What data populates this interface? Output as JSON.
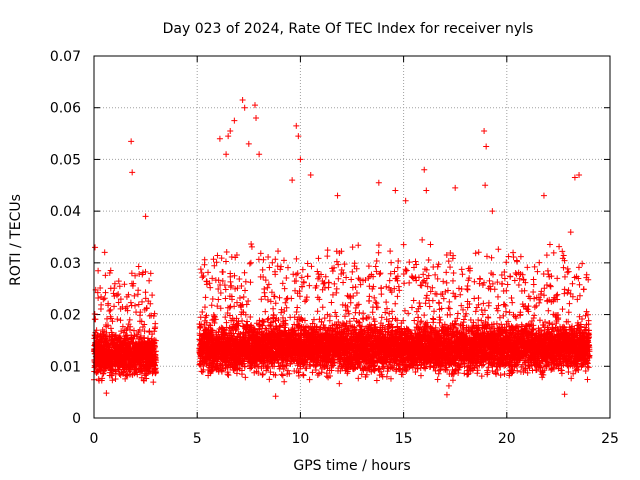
{
  "chart_data": {
    "type": "scatter",
    "title": "Day 023 of 2024, Rate Of TEC Index for receiver nyls",
    "xlabel": "GPS time / hours",
    "ylabel": "ROTI / TECUs",
    "xlim": [
      0,
      25
    ],
    "ylim": [
      0,
      0.07
    ],
    "x_ticks": [
      0,
      5,
      10,
      15,
      20,
      25
    ],
    "x_tick_labels": [
      "0",
      "5",
      "10",
      "15",
      "20",
      "25"
    ],
    "y_ticks": [
      0,
      0.01,
      0.02,
      0.03,
      0.04,
      0.05,
      0.06,
      0.07
    ],
    "y_tick_labels": [
      "0",
      "0.01",
      "0.02",
      "0.03",
      "0.04",
      "0.05",
      "0.06",
      "0.07"
    ],
    "grid": true,
    "marker": "plus",
    "color": "#ff0000",
    "series": [
      {
        "name": "ROTI",
        "segments": [
          {
            "x_range": [
              0.0,
              3.0
            ],
            "median": 0.012,
            "spread": 0.005
          },
          {
            "x_range": [
              5.1,
              24.0
            ],
            "median": 0.0135,
            "spread": 0.0055
          }
        ],
        "notable_points": [
          {
            "x": 0.05,
            "y": 0.033
          },
          {
            "x": 1.8,
            "y": 0.0535
          },
          {
            "x": 1.85,
            "y": 0.0475
          },
          {
            "x": 2.5,
            "y": 0.039
          },
          {
            "x": 6.1,
            "y": 0.054
          },
          {
            "x": 6.4,
            "y": 0.051
          },
          {
            "x": 6.5,
            "y": 0.0545
          },
          {
            "x": 6.6,
            "y": 0.0555
          },
          {
            "x": 6.8,
            "y": 0.0575
          },
          {
            "x": 7.2,
            "y": 0.0615
          },
          {
            "x": 7.3,
            "y": 0.06
          },
          {
            "x": 7.5,
            "y": 0.053
          },
          {
            "x": 7.8,
            "y": 0.0605
          },
          {
            "x": 7.85,
            "y": 0.058
          },
          {
            "x": 8.0,
            "y": 0.051
          },
          {
            "x": 9.6,
            "y": 0.046
          },
          {
            "x": 9.8,
            "y": 0.0565
          },
          {
            "x": 9.9,
            "y": 0.0545
          },
          {
            "x": 10.0,
            "y": 0.05
          },
          {
            "x": 10.5,
            "y": 0.047
          },
          {
            "x": 11.8,
            "y": 0.043
          },
          {
            "x": 13.8,
            "y": 0.0455
          },
          {
            "x": 14.6,
            "y": 0.044
          },
          {
            "x": 15.1,
            "y": 0.042
          },
          {
            "x": 16.0,
            "y": 0.048
          },
          {
            "x": 16.1,
            "y": 0.044
          },
          {
            "x": 17.5,
            "y": 0.0445
          },
          {
            "x": 18.9,
            "y": 0.0555
          },
          {
            "x": 19.0,
            "y": 0.0525
          },
          {
            "x": 18.95,
            "y": 0.045
          },
          {
            "x": 19.3,
            "y": 0.04
          },
          {
            "x": 21.8,
            "y": 0.043
          },
          {
            "x": 23.3,
            "y": 0.0465
          },
          {
            "x": 23.5,
            "y": 0.047
          },
          {
            "x": 0.6,
            "y": 0.0048
          },
          {
            "x": 8.8,
            "y": 0.0042
          },
          {
            "x": 17.1,
            "y": 0.0045
          },
          {
            "x": 22.8,
            "y": 0.0046
          }
        ]
      }
    ]
  }
}
